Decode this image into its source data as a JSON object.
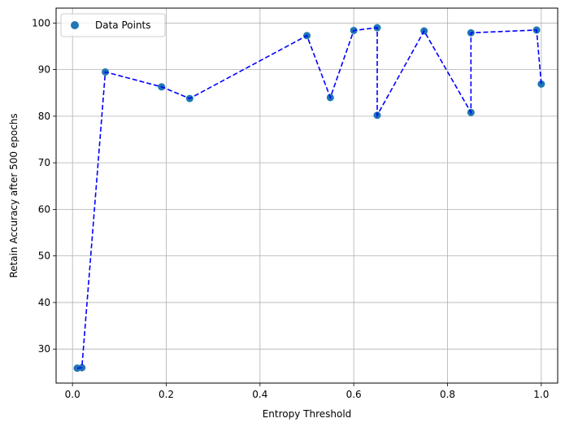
{
  "chart_data": {
    "type": "scatter",
    "title": "",
    "xlabel": "Entropy Threshold",
    "ylabel": "Retain Accuracy after 500 epochs",
    "xlim": [
      -0.035,
      1.035
    ],
    "ylim": [
      22.7,
      103.2
    ],
    "xticks": [
      0.0,
      0.2,
      0.4,
      0.6,
      0.8,
      1.0
    ],
    "xtick_labels": [
      "0.0",
      "0.2",
      "0.4",
      "0.6",
      "0.8",
      "1.0"
    ],
    "yticks": [
      30,
      40,
      50,
      60,
      70,
      80,
      90,
      100
    ],
    "ytick_labels": [
      "30",
      "40",
      "50",
      "60",
      "70",
      "80",
      "90",
      "100"
    ],
    "grid": true,
    "legend_position": "top-left",
    "series": [
      {
        "name": "Data Points",
        "style": "scatter",
        "color": "#1f77b4",
        "x": [
          0.01,
          0.02,
          0.07,
          0.19,
          0.25,
          0.5,
          0.55,
          0.6,
          0.65,
          0.65,
          0.75,
          0.85,
          0.85,
          0.99,
          1.0
        ],
        "y": [
          25.9,
          26.0,
          89.5,
          86.3,
          83.8,
          97.3,
          84.0,
          98.4,
          99.0,
          80.2,
          98.3,
          80.8,
          97.9,
          98.5,
          86.9
        ]
      },
      {
        "style": "dashed-line",
        "color": "#0000ff",
        "x": [
          0.01,
          0.02,
          0.07,
          0.19,
          0.25,
          0.5,
          0.55,
          0.6,
          0.65,
          0.65,
          0.75,
          0.85,
          0.85,
          0.99,
          1.0
        ],
        "y": [
          25.9,
          26.0,
          89.5,
          86.3,
          83.8,
          97.3,
          84.0,
          98.4,
          99.0,
          80.2,
          98.3,
          80.8,
          97.9,
          98.5,
          86.9
        ]
      }
    ]
  }
}
